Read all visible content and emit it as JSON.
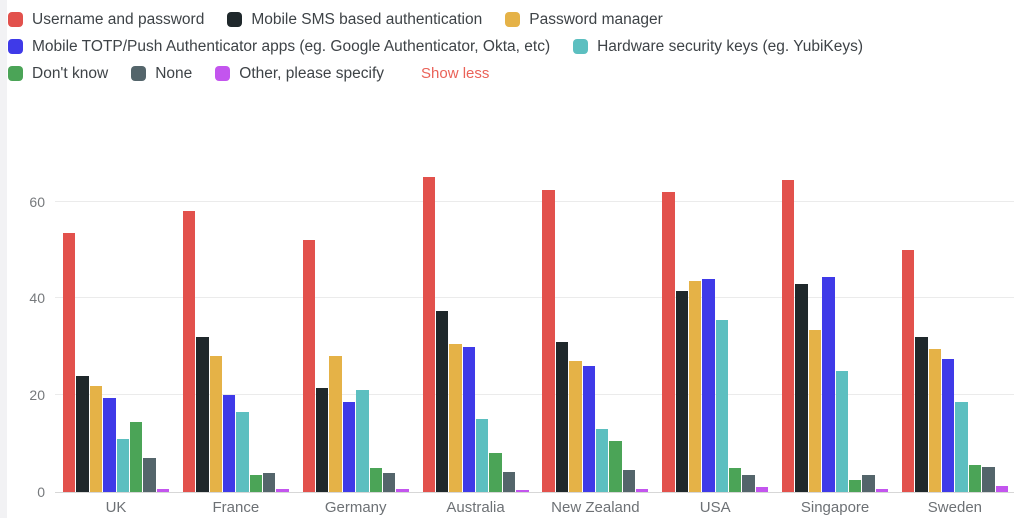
{
  "legend": {
    "show_less_label": "Show less"
  },
  "chart_data": {
    "type": "bar",
    "title": "",
    "xlabel": "",
    "ylabel": "",
    "categories": [
      "UK",
      "France",
      "Germany",
      "Australia",
      "New Zealand",
      "USA",
      "Singapore",
      "Sweden"
    ],
    "series": [
      {
        "name": "Username and password",
        "color": "#E2514C",
        "row": 0,
        "values": [
          53.5,
          58,
          52,
          65,
          62.5,
          62,
          64.5,
          50
        ]
      },
      {
        "name": "Mobile SMS based authentication",
        "color": "#1F282B",
        "row": 0,
        "values": [
          24,
          32,
          21.5,
          37.5,
          31,
          41.5,
          43,
          32
        ]
      },
      {
        "name": "Password manager",
        "color": "#E5B247",
        "row": 0,
        "values": [
          22,
          28,
          28,
          30.5,
          27,
          43.5,
          33.5,
          29.5
        ]
      },
      {
        "name": "Mobile TOTP/Push Authenticator apps (eg. Google Authenticator, Okta, etc)",
        "color": "#3F3AE8",
        "row": 1,
        "values": [
          19.5,
          20,
          18.5,
          30,
          26,
          44,
          44.5,
          27.5
        ]
      },
      {
        "name": "Hardware security keys (eg. YubiKeys)",
        "color": "#5CBFC0",
        "row": 1,
        "values": [
          11,
          16.5,
          21,
          15,
          13,
          35.5,
          25,
          18.5
        ]
      },
      {
        "name": "Don't know",
        "color": "#4BA457",
        "row": 2,
        "values": [
          14.5,
          3.5,
          5,
          8,
          10.5,
          5,
          2.5,
          5.5
        ]
      },
      {
        "name": "None",
        "color": "#54656B",
        "row": 2,
        "values": [
          7,
          4,
          4,
          4.2,
          4.6,
          3.5,
          3.5,
          5.2
        ]
      },
      {
        "name": "Other, please specify",
        "color": "#C355EE",
        "row": 2,
        "values": [
          0.7,
          0.7,
          0.7,
          0.4,
          0.7,
          1,
          0.7,
          1.3
        ]
      }
    ],
    "yticks": [
      0,
      20,
      40,
      60
    ],
    "ylim": [
      0,
      79
    ],
    "grid": true,
    "legend_position": "top-left"
  }
}
